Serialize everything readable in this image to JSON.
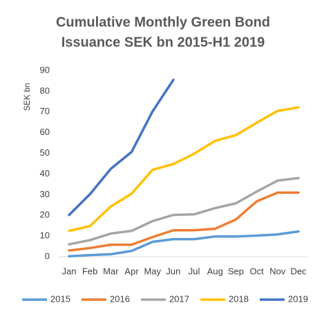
{
  "chart_data": {
    "type": "line",
    "title": [
      "Cumulative Monthly Green Bond",
      "Issuance SEK bn 2015-H1 2019"
    ],
    "y_label": "SEK bn",
    "categories": [
      "Jan",
      "Feb",
      "Mar",
      "Apr",
      "May",
      "Jun",
      "Jul",
      "Aug",
      "Sep",
      "Oct",
      "Nov",
      "Dec"
    ],
    "series": [
      {
        "name": "2015",
        "color": "#5b9bd5",
        "values": [
          0.2,
          0.8,
          1.2,
          2.8,
          7.2,
          8.5,
          8.5,
          9.8,
          9.8,
          10.2,
          10.8,
          12.2
        ]
      },
      {
        "name": "2016",
        "color": "#ed7d31",
        "values": [
          3,
          4.2,
          5.8,
          5.8,
          9.5,
          12.8,
          12.8,
          13.5,
          18,
          26.8,
          31,
          31
        ]
      },
      {
        "name": "2017",
        "color": "#a5a5a5",
        "values": [
          6,
          8,
          11.2,
          12.5,
          17.2,
          20.2,
          20.5,
          23.5,
          25.8,
          31.5,
          36.8,
          38
        ]
      },
      {
        "name": "2018",
        "color": "#ffc000",
        "values": [
          12.5,
          14.8,
          24.3,
          30.5,
          42,
          44.8,
          49.8,
          56,
          58.8,
          64.8,
          70.5,
          72.2
        ]
      },
      {
        "name": "2019",
        "color": "#4472c4",
        "values": [
          20.2,
          30.2,
          42.5,
          50.7,
          70.2,
          85.5,
          null,
          null,
          null,
          null,
          null,
          null
        ]
      }
    ],
    "ylim": [
      0,
      90
    ],
    "yticks": [
      0,
      10,
      20,
      30,
      40,
      50,
      60,
      70,
      80,
      90
    ],
    "grid": false,
    "legend": "bottom"
  }
}
